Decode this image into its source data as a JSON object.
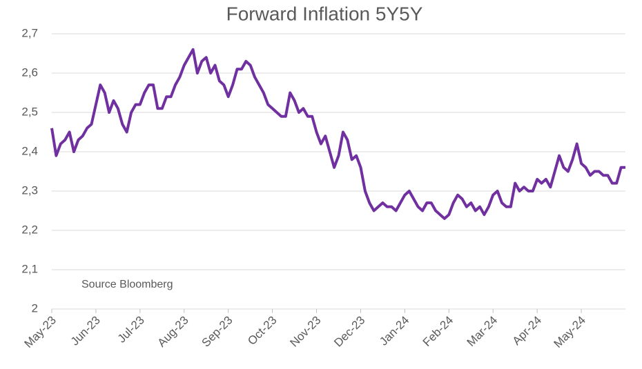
{
  "chart_data": {
    "type": "line",
    "title": "Forward Inflation 5Y5Y",
    "annotation": "Source Bloomberg",
    "categories": [
      "May-23",
      null,
      null,
      null,
      null,
      null,
      null,
      null,
      null,
      null,
      "Jun-23",
      null,
      null,
      null,
      null,
      null,
      null,
      null,
      null,
      null,
      "Jul-23",
      null,
      null,
      null,
      null,
      null,
      null,
      null,
      null,
      null,
      "Aug-23",
      null,
      null,
      null,
      null,
      null,
      null,
      null,
      null,
      null,
      "Sep-23",
      null,
      null,
      null,
      null,
      null,
      null,
      null,
      null,
      null,
      "Oct-23",
      null,
      null,
      null,
      null,
      null,
      null,
      null,
      null,
      null,
      "Nov-23",
      null,
      null,
      null,
      null,
      null,
      null,
      null,
      null,
      null,
      "Dec-23",
      null,
      null,
      null,
      null,
      null,
      null,
      null,
      null,
      null,
      "Jan-24",
      null,
      null,
      null,
      null,
      null,
      null,
      null,
      null,
      null,
      "Feb-24",
      null,
      null,
      null,
      null,
      null,
      null,
      null,
      null,
      null,
      "Mar-24",
      null,
      null,
      null,
      null,
      null,
      null,
      null,
      null,
      null,
      "Apr-24",
      null,
      null,
      null,
      null,
      null,
      null,
      null,
      null,
      null,
      "May-24",
      null,
      null,
      null,
      null,
      null,
      null,
      null,
      null,
      null,
      null
    ],
    "series": [
      {
        "name": "Forward Inflation 5Y5Y",
        "color": "#7030a0",
        "values": [
          2.46,
          2.39,
          2.42,
          2.43,
          2.45,
          2.4,
          2.43,
          2.44,
          2.46,
          2.47,
          2.52,
          2.57,
          2.55,
          2.5,
          2.53,
          2.51,
          2.47,
          2.45,
          2.5,
          2.52,
          2.52,
          2.55,
          2.57,
          2.57,
          2.51,
          2.51,
          2.54,
          2.54,
          2.57,
          2.59,
          2.62,
          2.64,
          2.66,
          2.6,
          2.63,
          2.64,
          2.6,
          2.62,
          2.58,
          2.57,
          2.54,
          2.57,
          2.61,
          2.61,
          2.63,
          2.62,
          2.59,
          2.57,
          2.55,
          2.52,
          2.51,
          2.5,
          2.49,
          2.49,
          2.55,
          2.53,
          2.5,
          2.51,
          2.49,
          2.49,
          2.45,
          2.42,
          2.44,
          2.4,
          2.36,
          2.39,
          2.45,
          2.43,
          2.38,
          2.39,
          2.36,
          2.3,
          2.27,
          2.25,
          2.26,
          2.27,
          2.26,
          2.26,
          2.25,
          2.27,
          2.29,
          2.3,
          2.28,
          2.26,
          2.25,
          2.27,
          2.27,
          2.25,
          2.24,
          2.23,
          2.24,
          2.27,
          2.29,
          2.28,
          2.26,
          2.27,
          2.25,
          2.26,
          2.24,
          2.26,
          2.29,
          2.3,
          2.27,
          2.26,
          2.26,
          2.32,
          2.3,
          2.31,
          2.3,
          2.3,
          2.33,
          2.32,
          2.33,
          2.31,
          2.35,
          2.39,
          2.36,
          2.35,
          2.38,
          2.42,
          2.37,
          2.36,
          2.34,
          2.35,
          2.35,
          2.34,
          2.34,
          2.32,
          2.32,
          2.36,
          2.36
        ]
      }
    ],
    "ylim": [
      2,
      2.7
    ],
    "yticks": [
      2,
      {
        "value": 2.1,
        "label": "2,1"
      },
      {
        "value": 2.2,
        "label": "2,2"
      },
      {
        "value": 2.3,
        "label": "2,3"
      },
      {
        "value": 2.4,
        "label": "2,4"
      },
      {
        "value": 2.5,
        "label": "2,5"
      },
      {
        "value": 2.6,
        "label": "2,6"
      },
      {
        "value": 2.7,
        "label": "2,7"
      }
    ],
    "grid": true
  }
}
